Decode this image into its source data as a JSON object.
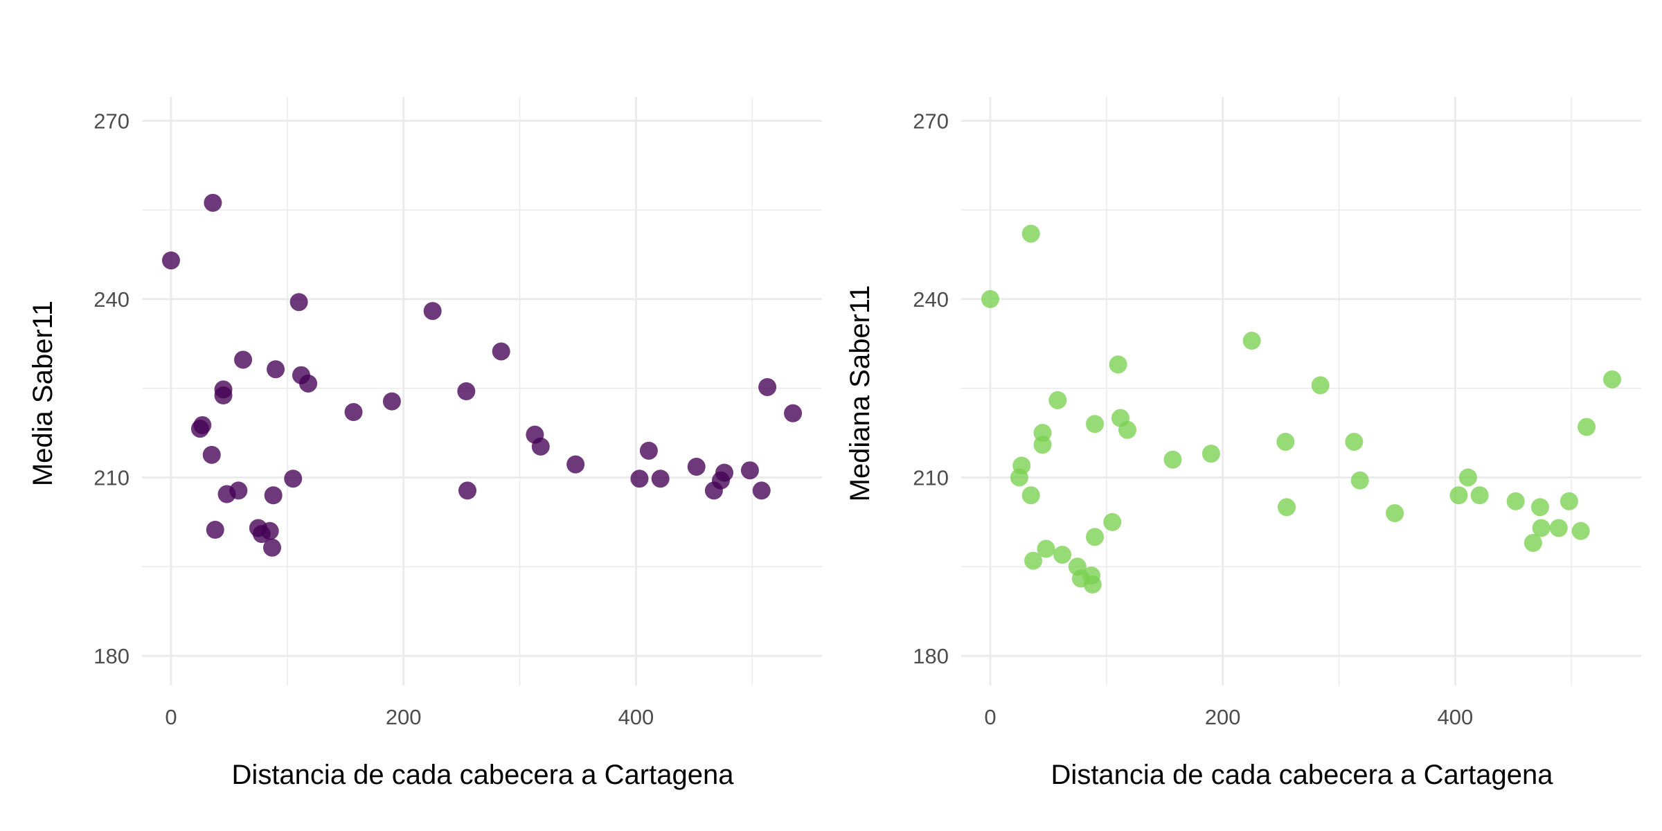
{
  "chart_data": [
    {
      "type": "scatter",
      "xlabel": "Distancia de cada cabecera a Cartagena",
      "ylabel": "Media Saber11",
      "xlim": [
        -25,
        560
      ],
      "ylim": [
        175,
        274
      ],
      "x_ticks": [
        0,
        200,
        400
      ],
      "y_ticks": [
        180,
        210,
        240,
        270
      ],
      "color": "#440154",
      "point_opacity": 0.78,
      "grid": true,
      "x": [
        0,
        36,
        25,
        27,
        35,
        38,
        45,
        45,
        48,
        58,
        62,
        75,
        78,
        85,
        87,
        88,
        90,
        105,
        110,
        112,
        118,
        157,
        190,
        225,
        254,
        255,
        284,
        313,
        318,
        348,
        403,
        411,
        421,
        452,
        467,
        473,
        476,
        498,
        508,
        513,
        535
      ],
      "y": [
        246.5,
        256.2,
        218.2,
        218.8,
        213.8,
        201.2,
        224.8,
        223.8,
        207.2,
        207.8,
        229.8,
        201.5,
        200.5,
        201.0,
        198.2,
        207.0,
        228.2,
        209.8,
        239.5,
        227.2,
        225.8,
        221.0,
        222.8,
        238.0,
        224.5,
        207.8,
        231.2,
        217.2,
        215.2,
        212.2,
        209.8,
        214.5,
        209.8,
        211.8,
        207.8,
        209.5,
        210.8,
        211.2,
        207.8,
        225.2,
        220.8
      ]
    },
    {
      "type": "scatter",
      "xlabel": "Distancia de cada cabecera a Cartagena",
      "ylabel": "Mediana Saber11",
      "xlim": [
        -25,
        560
      ],
      "ylim": [
        175,
        274
      ],
      "x_ticks": [
        0,
        200,
        400
      ],
      "y_ticks": [
        180,
        210,
        240,
        270
      ],
      "color": "#7AD151",
      "point_opacity": 0.78,
      "grid": true,
      "x": [
        0,
        35,
        25,
        27,
        35,
        37,
        45,
        45,
        48,
        58,
        62,
        75,
        78,
        87,
        88,
        90,
        90,
        105,
        110,
        112,
        118,
        157,
        190,
        225,
        254,
        255,
        284,
        313,
        318,
        348,
        403,
        411,
        421,
        452,
        467,
        473,
        474,
        489,
        498,
        508,
        513,
        535
      ],
      "y": [
        240.0,
        251.0,
        210.0,
        212.0,
        207.0,
        196.0,
        217.5,
        215.5,
        198.0,
        223.0,
        197.0,
        195.0,
        193.0,
        193.5,
        192.0,
        200.0,
        219.0,
        202.5,
        229.0,
        220.0,
        218.0,
        213.0,
        214.0,
        233.0,
        216.0,
        205.0,
        225.5,
        216.0,
        209.5,
        204.0,
        207.0,
        210.0,
        207.0,
        206.0,
        199.0,
        205.0,
        201.5,
        201.5,
        206.0,
        201.0,
        218.5,
        226.5
      ]
    }
  ]
}
